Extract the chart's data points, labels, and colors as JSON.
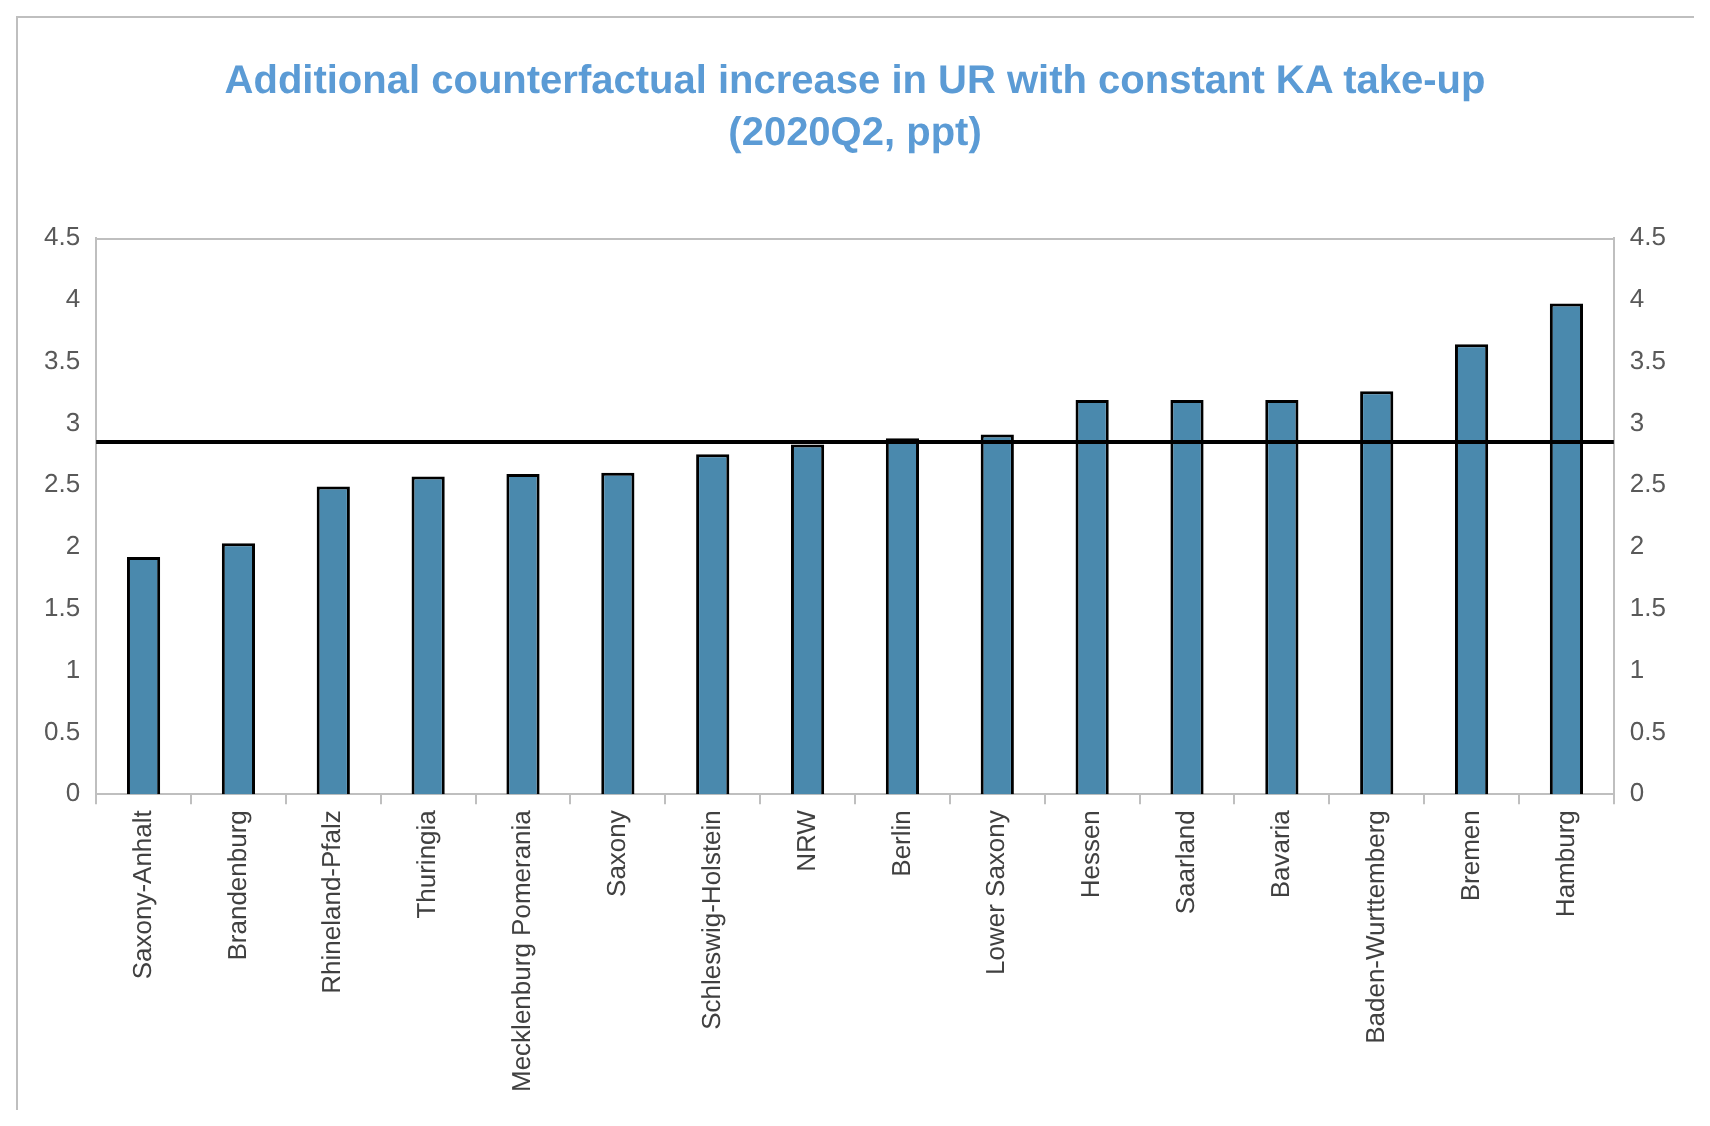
{
  "chart_data": {
    "type": "bar",
    "title": "Additional counterfactual increase in UR with constant KA take-up",
    "subtitle": "(2020Q2, ppt)",
    "categories": [
      "Saxony-Anhalt",
      "Brandenburg",
      "Rhineland-Pfalz",
      "Thuringia",
      "Mecklenburg Pomerania",
      "Saxony",
      "Schleswig-Holstein",
      "NRW",
      "Berlin",
      "Lower Saxony",
      "Hessen",
      "Saarland",
      "Bavaria",
      "Baden-Wurttemberg",
      "Bremen",
      "Hamburg"
    ],
    "values": [
      1.92,
      2.03,
      2.49,
      2.57,
      2.59,
      2.6,
      2.75,
      2.83,
      2.88,
      2.91,
      3.19,
      3.19,
      3.19,
      3.26,
      3.64,
      3.97
    ],
    "color": "#4a89ad",
    "ylim": [
      0,
      4.5
    ],
    "yticks": [
      0,
      0.5,
      1,
      1.5,
      2,
      2.5,
      3,
      3.5,
      4,
      4.5
    ],
    "y2lim": [
      0,
      4.5
    ],
    "y2ticks": [
      0,
      0.5,
      1,
      1.5,
      2,
      2.5,
      3,
      3.5,
      4,
      4.5
    ],
    "ref_lines": [
      {
        "axis": "y",
        "value": 2.85,
        "color": "#000000"
      }
    ],
    "grid": false,
    "legend": false
  }
}
